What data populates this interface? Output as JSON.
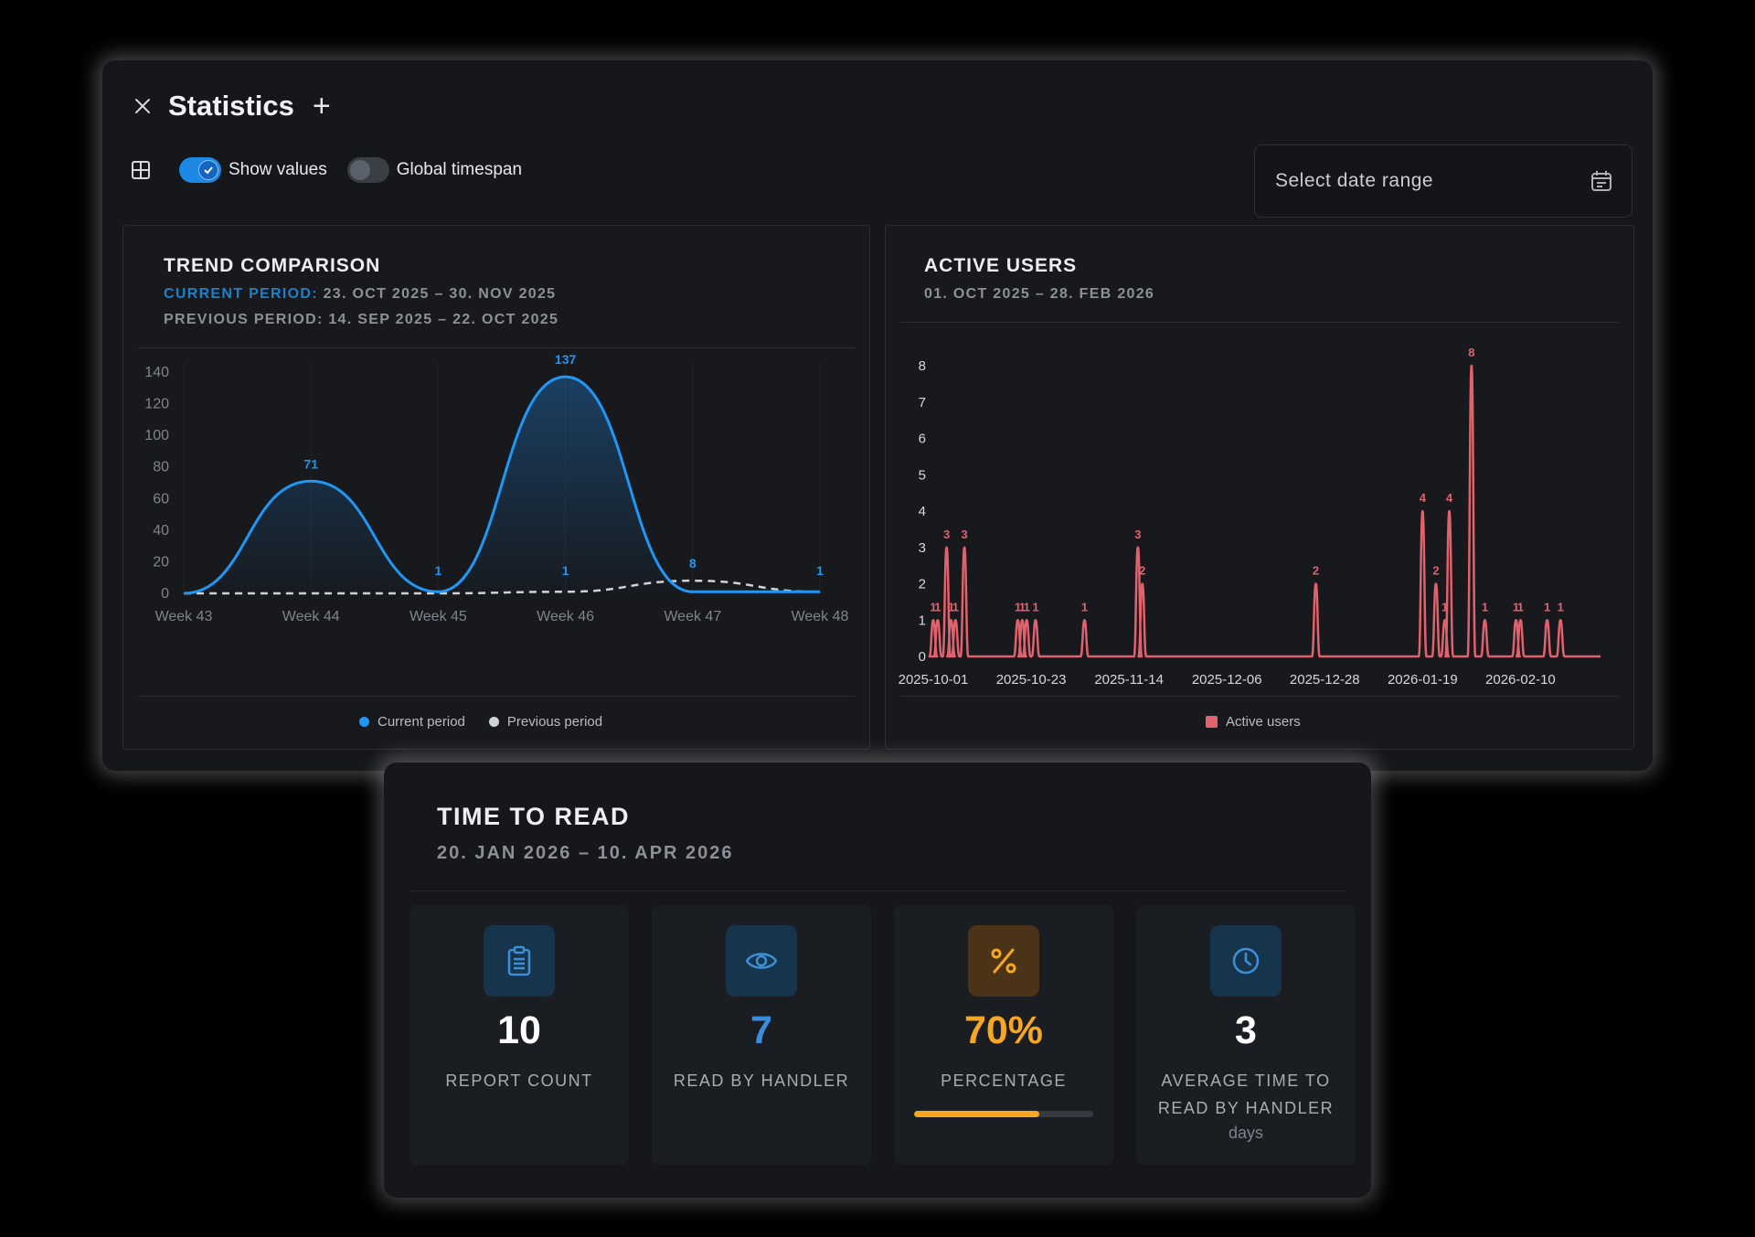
{
  "window": {
    "title": "Statistics",
    "close_icon": "close-icon",
    "add_icon": "plus-icon"
  },
  "toolbar": {
    "show_values": {
      "label": "Show values",
      "on": true
    },
    "global_timespan": {
      "label": "Global timespan",
      "on": false
    },
    "date_range_placeholder": "Select date range"
  },
  "trend": {
    "title": "TREND COMPARISON",
    "current_label": "CURRENT PERIOD:",
    "current_range": "23. OCT 2025 – 30. NOV 2025",
    "previous_label": "PREVIOUS PERIOD:",
    "previous_range": "14. SEP 2025 – 22. OCT 2025",
    "legend_current": "Current period",
    "legend_previous": "Previous period"
  },
  "active": {
    "title": "ACTIVE USERS",
    "range": "01. OCT 2025 – 28. FEB 2026",
    "legend": "Active users"
  },
  "ttr": {
    "title": "TIME TO READ",
    "range": "20. JAN 2026 – 10. APR 2026",
    "cards": [
      {
        "value": "10",
        "label": "REPORT COUNT",
        "icon": "clipboard-icon"
      },
      {
        "value": "7",
        "label": "READ BY HANDLER",
        "icon": "eye-icon"
      },
      {
        "value": "70%",
        "label": "PERCENTAGE",
        "icon": "percent-icon",
        "progress": 0.7
      },
      {
        "value": "3",
        "label": "AVERAGE TIME TO READ BY HANDLER",
        "unit": "days",
        "icon": "clock-icon"
      }
    ]
  },
  "colors": {
    "current": "#2196f3",
    "previous": "#cfd3d8",
    "active": "#e0626d",
    "percent": "#f5a623"
  },
  "chart_data": [
    {
      "type": "line",
      "categories": [
        "Week 43",
        "Week 44",
        "Week 45",
        "Week 46",
        "Week 47",
        "Week 48"
      ],
      "series": [
        {
          "name": "Current period",
          "values": [
            0,
            71,
            1,
            137,
            1,
            1
          ]
        },
        {
          "name": "Previous period",
          "values": [
            0,
            0,
            0,
            1,
            8,
            1
          ]
        }
      ],
      "data_labels": {
        "Current period": [
          "",
          "71",
          "1",
          "137",
          "",
          "1"
        ],
        "Previous period": [
          "",
          "",
          "",
          "1",
          "8",
          ""
        ]
      },
      "yticks": [
        0,
        20,
        40,
        60,
        80,
        100,
        120,
        140
      ],
      "ylim": [
        0,
        140
      ],
      "legend": "bottom"
    },
    {
      "type": "line",
      "xticks": [
        "2025-10-01",
        "2025-10-23",
        "2025-11-14",
        "2025-12-06",
        "2025-12-28",
        "2026-01-19",
        "2026-02-10"
      ],
      "yticks": [
        0,
        1,
        2,
        3,
        4,
        5,
        6,
        7,
        8
      ],
      "ylim": [
        0,
        8
      ],
      "x_range": [
        "2025-10-01",
        "2026-02-28"
      ],
      "series": [
        {
          "name": "Active users",
          "points": [
            [
              "2025-10-01",
              1
            ],
            [
              "2025-10-02",
              1
            ],
            [
              "2025-10-04",
              3
            ],
            [
              "2025-10-05",
              1
            ],
            [
              "2025-10-06",
              1
            ],
            [
              "2025-10-08",
              3
            ],
            [
              "2025-10-20",
              1
            ],
            [
              "2025-10-21",
              1
            ],
            [
              "2025-10-22",
              1
            ],
            [
              "2025-10-24",
              1
            ],
            [
              "2025-11-04",
              1
            ],
            [
              "2025-11-16",
              3
            ],
            [
              "2025-11-17",
              2
            ],
            [
              "2025-12-26",
              2
            ],
            [
              "2026-01-19",
              4
            ],
            [
              "2026-01-22",
              2
            ],
            [
              "2026-01-24",
              1
            ],
            [
              "2026-01-25",
              4
            ],
            [
              "2026-01-30",
              8
            ],
            [
              "2026-02-02",
              1
            ],
            [
              "2026-02-09",
              1
            ],
            [
              "2026-02-10",
              1
            ],
            [
              "2026-02-16",
              1
            ],
            [
              "2026-02-19",
              1
            ]
          ]
        }
      ],
      "legend": "bottom"
    }
  ]
}
